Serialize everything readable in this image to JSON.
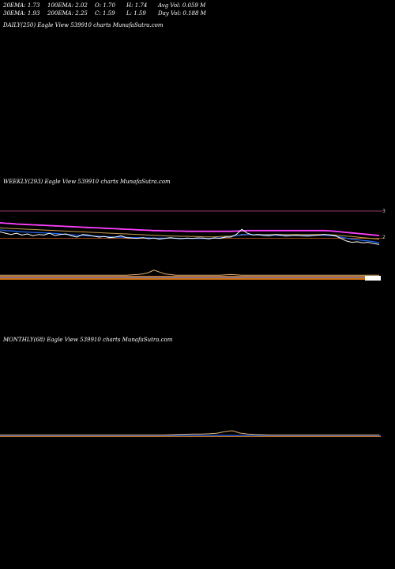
{
  "stats": {
    "row1": [
      "20EMA: 1.73",
      "100EMA: 2.02",
      "O: 1.70",
      "H: 1.74",
      "Avg Vol: 0.059 M"
    ],
    "row2": [
      "30EMA: 1.93",
      "200EMA: 2.25",
      "C: 1.59",
      "L: 1.59",
      "Day Vol: 0.188  M"
    ]
  },
  "labels": {
    "daily": "DAILY(250) Eagle  View  539910  charts MunafaSutra.com",
    "weekly": "WEEKLY(293) Eagle  View  539910  charts MunafaSutra.com",
    "monthly": "MONTHLY(68) Eagle  View  539910  charts MunafaSutra.com"
  },
  "colors": {
    "price": "#ffffff",
    "ema_fast": "#1e6bff",
    "ema_mid": "#c8a050",
    "ema_slow": "#ff40ff",
    "ref_line": "#d06020",
    "volume": "#d07010",
    "background": "#000000"
  },
  "chart_data": [
    {
      "type": "line",
      "title": "DAILY(250) Eagle  View  539910  charts MunafaSutra.com",
      "series": []
    },
    {
      "type": "line",
      "title": "WEEKLY(293) Eagle  View  539910  charts MunafaSutra.com",
      "y_ticks": [
        3,
        2
      ],
      "reference_lines": [
        3,
        1.95
      ],
      "series": [
        {
          "values": [
            2.2,
            2.15,
            2.1,
            2.15,
            2.08,
            2.12,
            2.05,
            2.1,
            2.08,
            2.15,
            2.06,
            2.1,
            2.12,
            2.05,
            2.0,
            2.1,
            2.08,
            2.04,
            2.0,
            2.02,
            1.98,
            2.0,
            2.05,
            1.98,
            1.96,
            1.95,
            1.98,
            1.94,
            1.96,
            1.92,
            1.95,
            1.98,
            1.95,
            1.94,
            1.96,
            1.95,
            1.97,
            1.96,
            1.93,
            1.97,
            1.95,
            2.0,
            2.0,
            2.1,
            2.3,
            2.15,
            2.08,
            2.1,
            2.06,
            2.05,
            2.1,
            2.08,
            2.04,
            2.06,
            2.07,
            2.05,
            2.04,
            2.06,
            2.08,
            2.1,
            2.08,
            2.05,
            1.95,
            1.85,
            1.8,
            1.82,
            1.78,
            1.8,
            1.75,
            1.72
          ]
        },
        {
          "values": [
            2.28,
            2.25,
            2.24,
            2.22,
            2.2,
            2.19,
            2.18,
            2.17,
            2.16,
            2.15,
            2.14,
            2.12,
            2.1,
            2.09,
            2.07,
            2.06,
            2.05,
            2.04,
            2.03,
            2.02,
            2.01,
            2.0,
            2.0,
            1.99,
            1.98,
            1.98,
            1.97,
            1.97,
            1.96,
            1.96,
            1.96,
            1.96,
            1.96,
            1.95,
            1.95,
            1.95,
            1.95,
            1.95,
            1.95,
            1.96,
            1.97,
            1.99,
            2.02,
            2.06,
            2.1,
            2.1,
            2.09,
            2.08,
            2.08,
            2.07,
            2.07,
            2.06,
            2.06,
            2.06,
            2.06,
            2.06,
            2.06,
            2.06,
            2.07,
            2.07,
            2.06,
            2.04,
            2.0,
            1.96,
            1.92,
            1.9,
            1.87,
            1.85,
            1.82,
            1.78
          ]
        },
        {
          "values": [
            2.35,
            2.34,
            2.33,
            2.32,
            2.31,
            2.3,
            2.29,
            2.28,
            2.27,
            2.26,
            2.25,
            2.24,
            2.23,
            2.22,
            2.21,
            2.2,
            2.19,
            2.18,
            2.17,
            2.16,
            2.15,
            2.14,
            2.13,
            2.12,
            2.11,
            2.1,
            2.09,
            2.08,
            2.07,
            2.06,
            2.05,
            2.04,
            2.04,
            2.03,
            2.03,
            2.02,
            2.02,
            2.01,
            2.01,
            2.01,
            2.02,
            2.03,
            2.04,
            2.06,
            2.08,
            2.09,
            2.09,
            2.1,
            2.1,
            2.1,
            2.1,
            2.1,
            2.1,
            2.1,
            2.1,
            2.1,
            2.1,
            2.1,
            2.1,
            2.1,
            2.09,
            2.08,
            2.06,
            2.04,
            2.02,
            2.0,
            1.98,
            1.96,
            1.94,
            1.92
          ]
        },
        {
          "values": [
            2.55,
            2.53,
            2.52,
            2.5,
            2.49,
            2.48,
            2.47,
            2.46,
            2.45,
            2.44,
            2.43,
            2.42,
            2.41,
            2.4,
            2.39,
            2.38,
            2.37,
            2.36,
            2.35,
            2.34,
            2.33,
            2.32,
            2.31,
            2.3,
            2.29,
            2.28,
            2.27,
            2.26,
            2.25,
            2.25,
            2.24,
            2.24,
            2.23,
            2.23,
            2.22,
            2.22,
            2.22,
            2.22,
            2.22,
            2.22,
            2.22,
            2.22,
            2.22,
            2.23,
            2.24,
            2.25,
            2.25,
            2.25,
            2.25,
            2.25,
            2.25,
            2.25,
            2.25,
            2.25,
            2.25,
            2.25,
            2.25,
            2.25,
            2.25,
            2.25,
            2.24,
            2.22,
            2.2,
            2.18,
            2.16,
            2.14,
            2.12,
            2.1,
            2.08,
            2.06
          ]
        }
      ],
      "volume": [
        0.1,
        0.1,
        0.1,
        0.1,
        0.1,
        0.1,
        0.1,
        0.1,
        0.1,
        0.1,
        0.1,
        0.1,
        0.1,
        0.1,
        0.1,
        0.1,
        0.1,
        0.1,
        0.1,
        0.1,
        0.1,
        0.1,
        0.1,
        0.1,
        0.15,
        0.2,
        0.3,
        0.5,
        0.9,
        0.6,
        0.3,
        0.2,
        0.1,
        0.1,
        0.1,
        0.1,
        0.1,
        0.1,
        0.1,
        0.1,
        0.1,
        0.15,
        0.2,
        0.15,
        0.1,
        0.1,
        0.1,
        0.1,
        0.1,
        0.1,
        0.1,
        0.1,
        0.1,
        0.1,
        0.1,
        0.1,
        0.1,
        0.1,
        0.1,
        0.1,
        0.1,
        0.1,
        0.1,
        0.1,
        0.1,
        0.1,
        0.1,
        0.1,
        0.1,
        0.1
      ]
    },
    {
      "type": "line",
      "title": "MONTHLY(68) Eagle  View  539910  charts MunafaSutra.com",
      "series": [
        {
          "values": [
            0.1,
            0.1,
            0.1,
            0.1,
            0.1,
            0.1,
            0.1,
            0.1,
            0.1,
            0.1,
            0.1,
            0.1,
            0.1,
            0.1,
            0.1,
            0.1,
            0.1,
            0.1,
            0.1,
            0.1,
            0.1,
            0.1,
            0.15,
            0.2,
            0.25,
            0.3,
            0.28,
            0.35,
            0.45,
            0.8,
            1.0,
            0.5,
            0.3,
            0.2,
            0.15,
            0.1,
            0.1,
            0.1,
            0.1,
            0.1,
            0.1,
            0.1,
            0.1,
            0.1,
            0.1,
            0.1,
            0.1,
            0.1,
            0.1,
            0.1
          ]
        }
      ]
    }
  ]
}
